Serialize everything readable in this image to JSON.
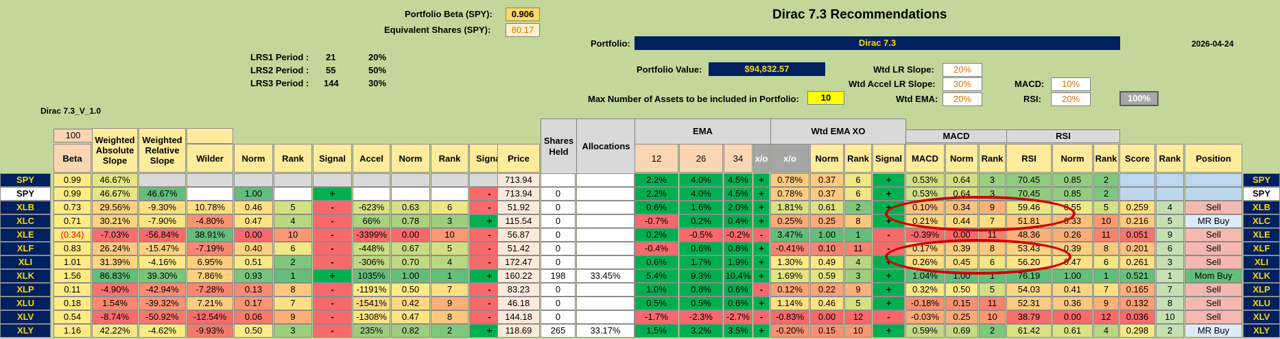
{
  "header": {
    "beta_label": "Portfolio Beta (SPY):",
    "beta_value": "0.906",
    "eq_label": "Equivalent Shares (SPY):",
    "eq_value": "80.17",
    "title": "Dirac 7.3 Recommendations",
    "portfolio_label": "Portfolio:",
    "portfolio_name": "Dirac 7.3",
    "date": "2026-04-24",
    "version": "Dirac 7.3_V_1.0",
    "value_label": "Portfolio Value:",
    "value": "$94,832.57",
    "max_label": "Max Number of Assets to be included in Portfolio:",
    "max_value": "10",
    "lrs": [
      {
        "label": "LRS1 Period :",
        "period": "21",
        "weight": "20%"
      },
      {
        "label": "LRS2 Period :",
        "period": "55",
        "weight": "50%"
      },
      {
        "label": "LRS3 Period :",
        "period": "144",
        "weight": "30%"
      }
    ],
    "wtd_lr_label": "Wtd LR Slope:",
    "wtd_lr": "20%",
    "wtd_accel_label": "Wtd Accel LR Slope:",
    "wtd_accel": "30%",
    "wtd_ema_label": "Wtd EMA:",
    "wtd_ema": "20%",
    "macd_label": "MACD:",
    "macd": "10%",
    "rsi_label": "RSI:",
    "rsi": "20%",
    "total": "100%"
  },
  "columns": {
    "beta_top": "100",
    "beta": "Beta",
    "was": "Weighted Absolute Slope",
    "wrs": "Weighted Relative Slope",
    "wilder": "Wilder",
    "norm": "Norm",
    "rank": "Rank",
    "signal": "Signal",
    "accel": "Accel",
    "price": "Price",
    "shares": "Shares Held",
    "alloc": "Allocations",
    "ema": "EMA",
    "ema12": "12",
    "ema26": "26",
    "ema34": "34",
    "xo": "x/o",
    "wtd_ema_xo": "Wtd EMA XO",
    "macd_grp": "MACD",
    "macd": "MACD",
    "rsi_grp": "RSI",
    "rsi": "RSI",
    "score": "Score",
    "position": "Position"
  },
  "rows": [
    {
      "t": "SPY",
      "beta": "0.99",
      "was": "46.67%",
      "wrs": "",
      "wil": "",
      "n1": "",
      "r1": "",
      "s1": "",
      "acc": "",
      "n2": "",
      "r2": "",
      "s2": "",
      "price": "713.94",
      "sh": "",
      "al": "",
      "e12": "2.2%",
      "e26": "4.0%",
      "e34": "4.5%",
      "xo": "+",
      "wx": "0.78%",
      "n3": "0.37",
      "r3": "6",
      "s3": "+",
      "macd": "0.53%",
      "n4": "0.64",
      "r4": "3",
      "rsi": "70.45",
      "n5": "0.85",
      "r5": "2",
      "sc": "",
      "rk": "",
      "pos": ""
    },
    {
      "t": "SPY",
      "beta": "0.99",
      "was": "46.67%",
      "wrs": "46.67%",
      "wil": "",
      "n1": "1.00",
      "r1": "",
      "s1": "+",
      "acc": "",
      "n2": "",
      "r2": "",
      "s2": "-",
      "price": "713.94",
      "sh": "0",
      "al": "",
      "e12": "2.2%",
      "e26": "4.0%",
      "e34": "4.5%",
      "xo": "+",
      "wx": "0.78%",
      "n3": "0.37",
      "r3": "6",
      "s3": "+",
      "macd": "0.53%",
      "n4": "0.64",
      "r4": "3",
      "rsi": "70.45",
      "n5": "0.85",
      "r5": "2",
      "sc": "",
      "rk": "",
      "pos": ""
    },
    {
      "t": "XLB",
      "beta": "0.73",
      "was": "29.56%",
      "wrs": "-9.30%",
      "wil": "10.78%",
      "n1": "0.46",
      "r1": "5",
      "s1": "-",
      "acc": "-623%",
      "n2": "0.63",
      "r2": "6",
      "s2": "-",
      "price": "51.92",
      "sh": "0",
      "al": "",
      "e12": "0.6%",
      "e26": "1.6%",
      "e34": "2.0%",
      "xo": "+",
      "wx": "1.81%",
      "n3": "0.61",
      "r3": "2",
      "s3": "+",
      "macd": "0.10%",
      "n4": "0.34",
      "r4": "9",
      "rsi": "59.46",
      "n5": "0.55",
      "r5": "5",
      "sc": "0.259",
      "rk": "4",
      "pos": "Sell"
    },
    {
      "t": "XLC",
      "beta": "0.71",
      "was": "30.21%",
      "wrs": "-7.90%",
      "wil": "-4.80%",
      "n1": "0.47",
      "r1": "4",
      "s1": "-",
      "acc": "66%",
      "n2": "0.78",
      "r2": "3",
      "s2": "+",
      "price": "115.54",
      "sh": "0",
      "al": "",
      "e12": "-0.7%",
      "e26": "0.2%",
      "e34": "0.4%",
      "xo": "+",
      "wx": "0.25%",
      "n3": "0.25",
      "r3": "8",
      "s3": "+",
      "macd": "0.21%",
      "n4": "0.44",
      "r4": "7",
      "rsi": "51.81",
      "n5": "0.33",
      "r5": "10",
      "sc": "0.216",
      "rk": "5",
      "pos": "MR Buy"
    },
    {
      "t": "XLE",
      "beta": "(0.34)",
      "was": "-7.03%",
      "wrs": "-56.84%",
      "wil": "38.91%",
      "n1": "0.00",
      "r1": "10",
      "s1": "-",
      "acc": "-3399%",
      "n2": "0.00",
      "r2": "10",
      "s2": "-",
      "price": "56.87",
      "sh": "0",
      "al": "",
      "e12": "0.2%",
      "e26": "-0.5%",
      "e34": "-0.2%",
      "xo": "-",
      "wx": "3.47%",
      "n3": "1.00",
      "r3": "1",
      "s3": "-",
      "macd": "-0.39%",
      "n4": "0.00",
      "r4": "11",
      "rsi": "48.36",
      "n5": "0.26",
      "r5": "11",
      "sc": "0.051",
      "rk": "9",
      "pos": "Sell"
    },
    {
      "t": "XLF",
      "beta": "0.83",
      "was": "26.24%",
      "wrs": "-15.47%",
      "wil": "-7.19%",
      "n1": "0.40",
      "r1": "6",
      "s1": "-",
      "acc": "-448%",
      "n2": "0.67",
      "r2": "5",
      "s2": "-",
      "price": "51.42",
      "sh": "0",
      "al": "",
      "e12": "-0.4%",
      "e26": "0.6%",
      "e34": "0.8%",
      "xo": "+",
      "wx": "-0.41%",
      "n3": "0.10",
      "r3": "11",
      "s3": "-",
      "macd": "0.17%",
      "n4": "0.39",
      "r4": "8",
      "rsi": "53.43",
      "n5": "0.39",
      "r5": "8",
      "sc": "0.201",
      "rk": "6",
      "pos": "Sell"
    },
    {
      "t": "XLI",
      "beta": "1.01",
      "was": "31.39%",
      "wrs": "-4.16%",
      "wil": "6.95%",
      "n1": "0.51",
      "r1": "2",
      "s1": "-",
      "acc": "-306%",
      "n2": "0.70",
      "r2": "4",
      "s2": "-",
      "price": "172.47",
      "sh": "0",
      "al": "",
      "e12": "0.6%",
      "e26": "1.7%",
      "e34": "1.9%",
      "xo": "+",
      "wx": "1.30%",
      "n3": "0.49",
      "r3": "4",
      "s3": "+",
      "macd": "0.26%",
      "n4": "0.45",
      "r4": "6",
      "rsi": "56.20",
      "n5": "0.47",
      "r5": "6",
      "sc": "0.261",
      "rk": "3",
      "pos": "Sell"
    },
    {
      "t": "XLK",
      "beta": "1.56",
      "was": "86.83%",
      "wrs": "39.30%",
      "wil": "7.86%",
      "n1": "0.93",
      "r1": "1",
      "s1": "+",
      "acc": "1035%",
      "n2": "1.00",
      "r2": "1",
      "s2": "+",
      "price": "160.22",
      "sh": "198",
      "al": "33.45%",
      "e12": "5.4%",
      "e26": "9.3%",
      "e34": "10.4%",
      "xo": "+",
      "wx": "1.69%",
      "n3": "0.59",
      "r3": "3",
      "s3": "+",
      "macd": "1.04%",
      "n4": "1.00",
      "r4": "1",
      "rsi": "76.19",
      "n5": "1.00",
      "r5": "1",
      "sc": "0.521",
      "rk": "1",
      "pos": "Mom Buy"
    },
    {
      "t": "XLP",
      "beta": "0.11",
      "was": "-4.90%",
      "wrs": "-42.94%",
      "wil": "-7.28%",
      "n1": "0.13",
      "r1": "8",
      "s1": "-",
      "acc": "-1191%",
      "n2": "0.50",
      "r2": "7",
      "s2": "-",
      "price": "83.23",
      "sh": "0",
      "al": "",
      "e12": "1.0%",
      "e26": "0.8%",
      "e34": "0.6%",
      "xo": "-",
      "wx": "0.12%",
      "n3": "0.22",
      "r3": "9",
      "s3": "+",
      "macd": "0.32%",
      "n4": "0.50",
      "r4": "5",
      "rsi": "54.03",
      "n5": "0.41",
      "r5": "7",
      "sc": "0.165",
      "rk": "7",
      "pos": "Sell"
    },
    {
      "t": "XLU",
      "beta": "0.18",
      "was": "1.54%",
      "wrs": "-39.32%",
      "wil": "7.21%",
      "n1": "0.17",
      "r1": "7",
      "s1": "-",
      "acc": "-1541%",
      "n2": "0.42",
      "r2": "9",
      "s2": "-",
      "price": "46.18",
      "sh": "0",
      "al": "",
      "e12": "0.5%",
      "e26": "0.5%",
      "e34": "0.6%",
      "xo": "+",
      "wx": "1.14%",
      "n3": "0.46",
      "r3": "5",
      "s3": "+",
      "macd": "-0.18%",
      "n4": "0.15",
      "r4": "11",
      "rsi": "52.31",
      "n5": "0.36",
      "r5": "9",
      "sc": "0.132",
      "rk": "8",
      "pos": "Sell"
    },
    {
      "t": "XLV",
      "beta": "0.54",
      "was": "-8.74%",
      "wrs": "-50.92%",
      "wil": "-12.54%",
      "n1": "0.06",
      "r1": "9",
      "s1": "-",
      "acc": "-1308%",
      "n2": "0.47",
      "r2": "8",
      "s2": "-",
      "price": "144.18",
      "sh": "0",
      "al": "",
      "e12": "-1.7%",
      "e26": "-2.3%",
      "e34": "-2.7%",
      "xo": "-",
      "wx": "-0.83%",
      "n3": "0.00",
      "r3": "12",
      "s3": "-",
      "macd": "-0.03%",
      "n4": "0.25",
      "r4": "10",
      "rsi": "38.79",
      "n5": "0.00",
      "r5": "12",
      "sc": "0.036",
      "rk": "10",
      "pos": "Sell"
    },
    {
      "t": "XLY",
      "beta": "1.16",
      "was": "42.22%",
      "wrs": "-4.62%",
      "wil": "-9.93%",
      "n1": "0.50",
      "r1": "3",
      "s1": "-",
      "acc": "235%",
      "n2": "0.82",
      "r2": "2",
      "s2": "+",
      "price": "118.69",
      "sh": "265",
      "al": "33.17%",
      "e12": "1.5%",
      "e26": "3.2%",
      "e34": "3.5%",
      "xo": "+",
      "wx": "-0.20%",
      "n3": "0.15",
      "r3": "10",
      "s3": "+",
      "macd": "0.59%",
      "n4": "0.69",
      "r4": "2",
      "rsi": "61.42",
      "n5": "0.61",
      "r5": "4",
      "sc": "0.298",
      "rk": "2",
      "pos": "MR Buy"
    }
  ],
  "colors": {
    "green": "#00b050",
    "red": "#f8696b",
    "yellow": "#ffeb84",
    "ltgreen": "#63be7b",
    "navy": "#002060",
    "sell": "#f4b8b0",
    "buy": "#c6efce",
    "mrbuy": "#ddebf7",
    "circle": "#d00000"
  }
}
